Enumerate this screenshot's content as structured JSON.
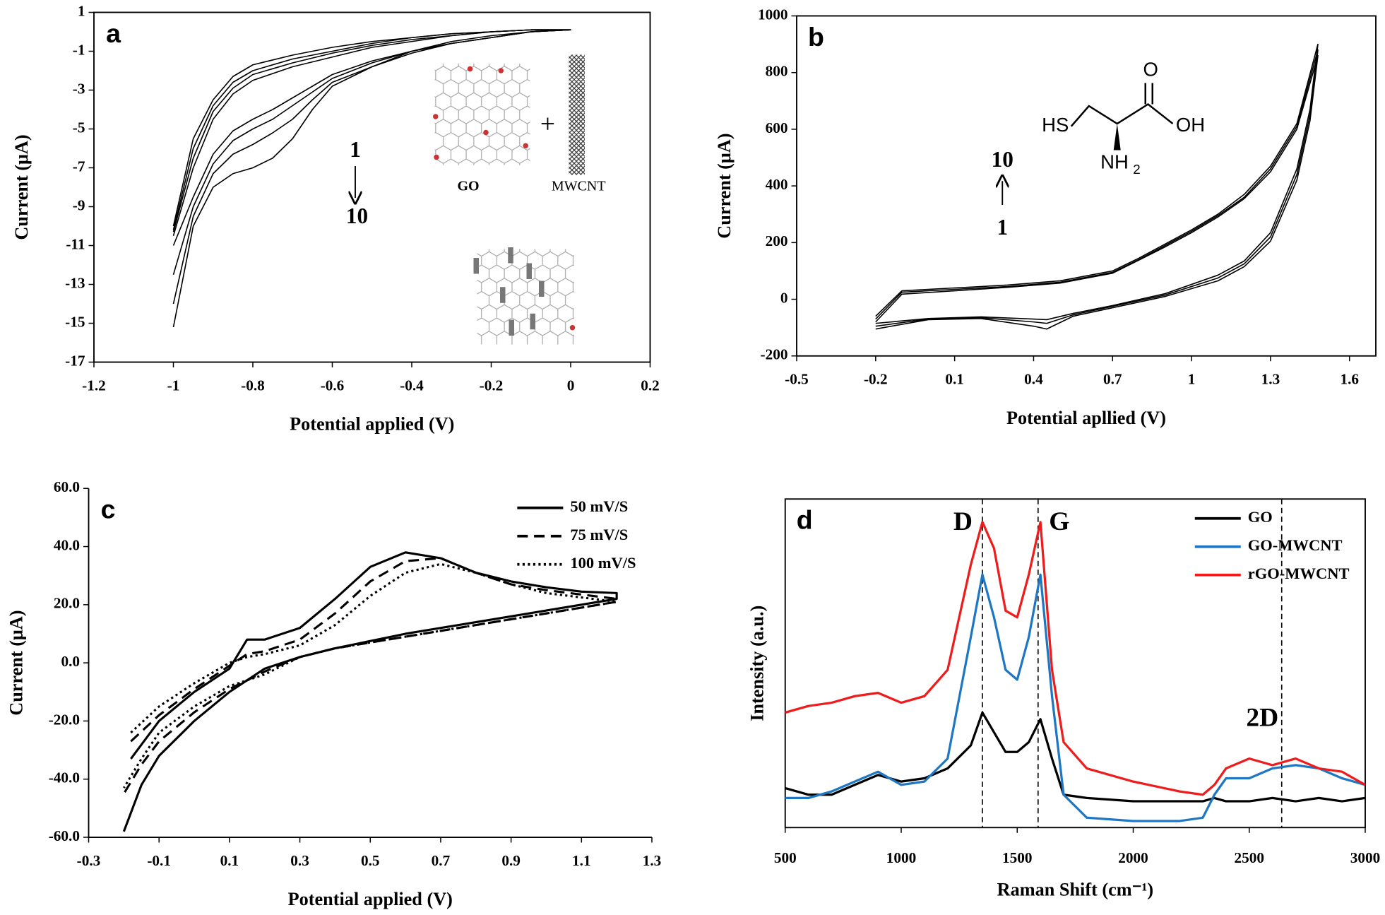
{
  "chart_data": [
    {
      "type": "line",
      "label": "a",
      "xlabel": "Potential applied (V)",
      "ylabel": "Current (μA)",
      "xlim": [
        -1.2,
        0.2
      ],
      "xticks": [
        -1.2,
        -1,
        -0.8,
        -0.6,
        -0.4,
        -0.2,
        0,
        0.2
      ],
      "ylim": [
        -17,
        1
      ],
      "yticks": [
        1,
        -1,
        -3,
        -5,
        -7,
        -9,
        -11,
        -13,
        -15,
        -17
      ],
      "frame": true,
      "annotations": [
        "1",
        "10",
        "+",
        "GO",
        "MWCNT"
      ],
      "x": [
        -1,
        -0.95,
        -0.9,
        -0.85,
        -0.8,
        -0.75,
        -0.7,
        -0.65,
        -0.6,
        -0.5,
        -0.4,
        -0.3,
        -0.2,
        -0.1,
        0,
        -0.1,
        -0.2,
        -0.3,
        -0.4,
        -0.5,
        -0.6,
        -0.7,
        -0.8,
        -0.85,
        -0.9,
        -0.95,
        -1
      ],
      "series": [
        {
          "color": "#000000",
          "values": [
            -15.2,
            -10,
            -8,
            -7.3,
            -7,
            -6.5,
            -5.5,
            -4,
            -2.8,
            -1.8,
            -1,
            -0.5,
            -0.2,
            0,
            0.1,
            0.1,
            0,
            -0.2,
            -0.5,
            -0.8,
            -1.3,
            -1.8,
            -2.5,
            -3.2,
            -4.5,
            -7,
            -10.5
          ]
        },
        {
          "color": "#000000",
          "values": [
            -14,
            -9.5,
            -7.3,
            -6.3,
            -5.8,
            -5.2,
            -4.5,
            -3.5,
            -2.6,
            -1.8,
            -1.1,
            -0.6,
            -0.3,
            0,
            0.1,
            0.1,
            0,
            -0.2,
            -0.4,
            -0.7,
            -1.1,
            -1.6,
            -2.2,
            -2.9,
            -4.1,
            -6.5,
            -10.3
          ]
        },
        {
          "color": "#000000",
          "values": [
            -12.5,
            -9,
            -6.8,
            -5.6,
            -5,
            -4.5,
            -3.8,
            -3.1,
            -2.4,
            -1.6,
            -1,
            -0.6,
            -0.3,
            0,
            0.1,
            0.1,
            0,
            -0.1,
            -0.3,
            -0.6,
            -1,
            -1.4,
            -2,
            -2.6,
            -3.8,
            -6,
            -10.2
          ]
        },
        {
          "color": "#000000",
          "values": [
            -11,
            -8.5,
            -6.3,
            -5.1,
            -4.5,
            -4,
            -3.4,
            -2.8,
            -2.2,
            -1.5,
            -1,
            -0.6,
            -0.3,
            0,
            0.1,
            0.1,
            0,
            -0.1,
            -0.3,
            -0.5,
            -0.8,
            -1.2,
            -1.7,
            -2.3,
            -3.5,
            -5.5,
            -10
          ]
        }
      ]
    },
    {
      "type": "line",
      "label": "b",
      "xlabel": "Potential apllied (V)",
      "ylabel": "Current (μA)",
      "xlim": [
        -0.5,
        1.7
      ],
      "xticks": [
        -0.5,
        -0.2,
        0.1,
        0.4,
        0.7,
        1,
        1.3,
        1.6
      ],
      "ylim": [
        -200,
        1000
      ],
      "yticks": [
        -200,
        0,
        200,
        400,
        600,
        800,
        1000
      ],
      "frame": true,
      "annotations": [
        "10",
        "1",
        "HS",
        "OH",
        "O",
        "NH",
        "2"
      ],
      "x": [
        -0.2,
        0,
        0.2,
        0.4,
        0.45,
        0.55,
        0.7,
        0.9,
        1.1,
        1.2,
        1.3,
        1.4,
        1.45,
        1.48,
        1.4,
        1.3,
        1.2,
        1.1,
        1,
        0.9,
        0.8,
        0.7,
        0.5,
        0.3,
        0.1,
        -0.1,
        -0.2
      ],
      "series": [
        {
          "color": "#000000",
          "values": [
            -95,
            -70,
            -65,
            -80,
            -85,
            -55,
            -25,
            15,
            75,
            125,
            220,
            440,
            650,
            880,
            610,
            460,
            360,
            295,
            240,
            190,
            140,
            95,
            60,
            45,
            35,
            25,
            -70
          ]
        },
        {
          "color": "#000000",
          "values": [
            -105,
            -72,
            -68,
            -95,
            -105,
            -60,
            -30,
            10,
            65,
            115,
            205,
            420,
            630,
            860,
            600,
            450,
            355,
            290,
            235,
            185,
            138,
            92,
            57,
            42,
            30,
            18,
            -80
          ]
        },
        {
          "color": "#000000",
          "values": [
            -85,
            -68,
            -62,
            -70,
            -72,
            -50,
            -22,
            20,
            85,
            135,
            235,
            460,
            670,
            900,
            620,
            470,
            370,
            300,
            245,
            195,
            145,
            100,
            65,
            50,
            40,
            30,
            -60
          ]
        }
      ]
    },
    {
      "type": "line",
      "label": "c",
      "xlabel": "Potential applied (V)",
      "ylabel": "Current (μA)",
      "xlim": [
        -0.3,
        1.3
      ],
      "xticks": [
        -0.3,
        -0.1,
        0.1,
        0.3,
        0.5,
        0.7,
        0.9,
        1.1,
        1.3
      ],
      "ylim": [
        -60,
        60
      ],
      "yticks": [
        {
          "value": 60,
          "label": "60.0"
        },
        {
          "value": 40,
          "label": "40.0"
        },
        {
          "value": 20,
          "label": "20.0"
        },
        {
          "value": 0,
          "label": "0.0"
        },
        {
          "value": -20,
          "label": "-20.0"
        },
        {
          "value": -40,
          "label": "-40.0"
        },
        {
          "value": -60,
          "label": "-60.0"
        }
      ],
      "frame": false,
      "legend": "upper right",
      "x": [
        -0.18,
        -0.1,
        0,
        0.1,
        0.15,
        0.2,
        0.3,
        0.4,
        0.5,
        0.6,
        0.7,
        0.8,
        0.9,
        1,
        1.1,
        1.2,
        1.2,
        1,
        0.8,
        0.6,
        0.4,
        0.3,
        0.2,
        0.1,
        0,
        -0.1,
        -0.15,
        -0.2
      ],
      "series": [
        {
          "name": "50 mV/S",
          "color": "#000000",
          "dash": "solid",
          "values": [
            -33,
            -20,
            -10,
            -2,
            8,
            8,
            12,
            22,
            33,
            38,
            36,
            31,
            28,
            26,
            24.5,
            24,
            22,
            18,
            14,
            10,
            5,
            2,
            -2,
            -10,
            -20,
            -32,
            -42,
            -58
          ]
        },
        {
          "name": "75 mV/S",
          "color": "#000000",
          "dash": "dashed",
          "values": [
            -27,
            -18,
            -9,
            -1,
            3,
            4,
            8,
            17,
            28,
            35,
            36,
            31,
            27,
            25,
            23.5,
            22,
            21,
            17,
            13,
            9,
            5,
            2,
            -3,
            -9,
            -17,
            -27,
            -35,
            -45
          ]
        },
        {
          "name": "100 mV/S",
          "color": "#000000",
          "dash": "dotted",
          "values": [
            -24,
            -15,
            -7,
            0,
            2,
            3,
            6,
            13,
            23,
            31,
            34,
            31,
            27,
            24,
            22.5,
            21,
            21,
            17,
            13,
            9,
            5,
            2,
            -4,
            -8,
            -15,
            -24,
            -33,
            -43
          ]
        }
      ]
    },
    {
      "type": "line",
      "label": "d",
      "xlabel": "Raman Shift (cm⁻¹)",
      "ylabel": "Intensity (a.u.)",
      "xlim": [
        500,
        3000
      ],
      "xticks": [
        500,
        1000,
        1500,
        2000,
        2500,
        3000
      ],
      "ylim": [
        0,
        100
      ],
      "frame": true,
      "legend": "upper right",
      "vlines": [
        1350,
        1590,
        2640
      ],
      "annotations": [
        "D",
        "G",
        "2D"
      ],
      "x": [
        500,
        600,
        700,
        800,
        900,
        1000,
        1100,
        1200,
        1300,
        1350,
        1400,
        1450,
        1500,
        1550,
        1600,
        1650,
        1700,
        1800,
        2000,
        2200,
        2300,
        2350,
        2400,
        2500,
        2600,
        2700,
        2800,
        2900,
        3000
      ],
      "series": [
        {
          "name": "GO",
          "color": "#000000",
          "dash": "solid",
          "values": [
            12,
            10,
            10,
            13,
            16,
            14,
            15,
            18,
            25,
            35,
            29,
            23,
            23,
            26,
            33,
            21,
            10,
            9,
            8,
            8,
            8,
            9,
            8,
            8,
            9,
            8,
            9,
            8,
            9
          ]
        },
        {
          "name": "GO-MWCNT",
          "color": "#1f77c4",
          "dash": "solid",
          "values": [
            9,
            9,
            11,
            14,
            17,
            13,
            14,
            21,
            58,
            77,
            64,
            48,
            45,
            58,
            77,
            40,
            10,
            3,
            2,
            2,
            3,
            10,
            15,
            15,
            18,
            19,
            18,
            15,
            13
          ]
        },
        {
          "name": "rGO-MWCNT",
          "color": "#ee1c1c",
          "dash": "solid",
          "values": [
            35,
            37,
            38,
            40,
            41,
            38,
            40,
            48,
            80,
            93,
            85,
            66,
            64,
            77,
            93,
            48,
            26,
            18,
            14,
            11,
            10,
            13,
            18,
            21,
            19,
            21,
            18,
            17,
            13
          ]
        }
      ]
    }
  ]
}
